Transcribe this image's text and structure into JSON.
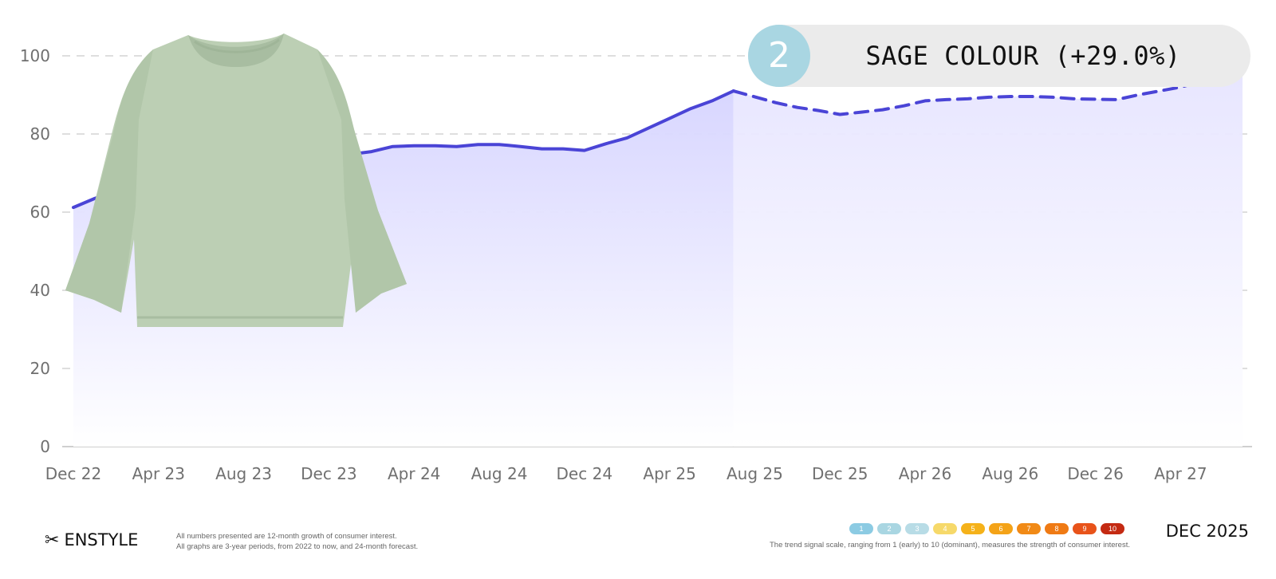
{
  "chart_data": {
    "type": "area",
    "title": "SAGE COLOUR (+29.0%)",
    "xlabel": "",
    "ylabel": "",
    "ylim": [
      0,
      105
    ],
    "grid": true,
    "y_ticks": [
      0,
      20,
      40,
      60,
      80,
      100
    ],
    "x_tick_labels": [
      "Dec 22",
      "Apr 23",
      "Aug 23",
      "Dec 23",
      "Apr 24",
      "Aug 24",
      "Dec 24",
      "Apr 25",
      "Aug 25",
      "Dec 25",
      "Apr 26",
      "Aug 26",
      "Dec 26",
      "Apr 27"
    ],
    "series": [
      {
        "style": "solid",
        "x": [
          "Dec 22",
          "Jan 23",
          "Feb 23",
          "Mar 23",
          "Apr 23",
          "May 23",
          "Jun 23",
          "Jul 23",
          "Aug 23",
          "Sep 23",
          "Oct 23",
          "Nov 23",
          "Dec 23",
          "Jan 24",
          "Feb 24",
          "Mar 24",
          "Apr 24",
          "May 24",
          "Jun 24",
          "Jul 24",
          "Aug 24",
          "Sep 24",
          "Oct 24",
          "Nov 24",
          "Dec 24",
          "Jan 25",
          "Feb 25",
          "Mar 25",
          "Apr 25",
          "May 25",
          "Jun 25",
          "Jul 25"
        ],
        "values": [
          61.2,
          63.5,
          65.5,
          67.5,
          69.5,
          70.8,
          71.5,
          72.0,
          72.5,
          73.0,
          73.5,
          74.0,
          74.5,
          74.8,
          75.5,
          76.8,
          77.0,
          77.0,
          76.8,
          77.3,
          77.3,
          76.8,
          76.2,
          76.2,
          75.8,
          77.5,
          79.0,
          81.5,
          84.0,
          86.5,
          88.5,
          91.0
        ]
      },
      {
        "style": "dashed",
        "x": [
          "Jul 25",
          "Aug 25",
          "Sep 25",
          "Oct 25",
          "Nov 25",
          "Dec 25",
          "Jan 26",
          "Feb 26",
          "Mar 26",
          "Apr 26",
          "May 26",
          "Jun 26",
          "Jul 26",
          "Aug 26",
          "Sep 26",
          "Oct 26",
          "Nov 26",
          "Dec 26",
          "Jan 27",
          "Feb 27",
          "Mar 27",
          "Apr 27",
          "May 27",
          "Jun 27",
          "Jul 27"
        ],
        "values": [
          91.0,
          89.5,
          88.0,
          86.8,
          86.0,
          85.0,
          85.6,
          86.2,
          87.2,
          88.5,
          88.8,
          89.0,
          89.4,
          89.6,
          89.6,
          89.4,
          89.0,
          88.9,
          88.8,
          90.0,
          91.0,
          92.0,
          93.5,
          95.0,
          96.0
        ]
      }
    ]
  },
  "badge": {
    "number": "2",
    "label": "SAGE COLOUR (+29.0%)"
  },
  "footer": {
    "brand": "ENSTYLE",
    "notes": [
      "All numbers presented are 12-month growth of consumer interest.",
      "All graphs are 3-year periods, from 2022 to now, and 24-month forecast."
    ],
    "scale_labels": [
      "1",
      "2",
      "3",
      "4",
      "5",
      "6",
      "7",
      "8",
      "9",
      "10"
    ],
    "scale_note": "The trend signal scale, ranging from 1 (early) to 10 (dominant), measures the strength of consumer interest.",
    "date": "DEC 2025"
  },
  "colors": {
    "line": "#4a44d6",
    "fill_top": "#d8d6ff",
    "grid": "#dedede",
    "badge_circle": "#a9d6e2",
    "badge_bg": "#ebebeb",
    "scale": [
      "#8ccbe3",
      "#a9d6e2",
      "#b8dce6",
      "#f6d96a",
      "#f5b21a",
      "#f4a318",
      "#f18a16",
      "#ef7a14",
      "#e8531a",
      "#c42a12"
    ],
    "product": "#bccfb4"
  },
  "icons": {
    "brand_mark": "scissors-icon",
    "product_image": "sweatshirt-image"
  }
}
